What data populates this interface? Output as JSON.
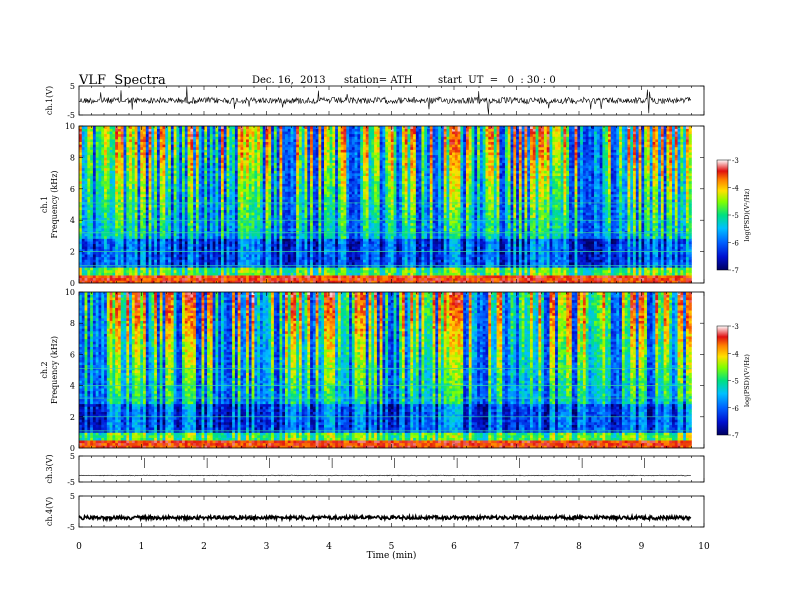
{
  "header": {
    "title": "VLF  Spectra",
    "date": "Dec. 16,  2013",
    "station": "station= ATH",
    "start": "start  UT  =   0  : 30 : 0"
  },
  "chart_data": [
    {
      "type": "line",
      "name": "ch1-waveform",
      "ylabel": "ch.1(V)",
      "ylim": [
        -5,
        5
      ],
      "yticks": [
        "5",
        "-5"
      ],
      "xlim": [
        0,
        10
      ],
      "data_end_min": 9.8,
      "baseline": 0,
      "color": "#000000"
    },
    {
      "type": "heatmap",
      "name": "ch1-spectrogram",
      "ylabel_top": "ch.1",
      "ylabel": "Frequency  (kHz)",
      "ylim": [
        0,
        10
      ],
      "yticks": [
        "0",
        "2",
        "4",
        "6",
        "8",
        "10"
      ],
      "xlim": [
        0,
        10
      ],
      "data_end_min": 9.8,
      "colorbar": {
        "label": "log(PSD)(V²/Hz)",
        "range": [
          -7,
          -3
        ],
        "ticks": [
          "-3",
          "-4",
          "-5",
          "-6",
          "-7"
        ]
      }
    },
    {
      "type": "heatmap",
      "name": "ch2-spectrogram",
      "ylabel_top": "ch.2",
      "ylabel": "Frequency  (kHz)",
      "ylim": [
        0,
        10
      ],
      "yticks": [
        "0",
        "2",
        "4",
        "6",
        "8",
        "10"
      ],
      "xlim": [
        0,
        10
      ],
      "data_end_min": 9.8,
      "colorbar": {
        "label": "log(PSD)(V²/Hz)",
        "range": [
          -7,
          -3
        ],
        "ticks": [
          "-3",
          "-4",
          "-5",
          "-6",
          "-7"
        ]
      }
    },
    {
      "type": "line",
      "name": "ch3-waveform",
      "ylabel": "ch.3(V)",
      "ylim": [
        -5,
        5
      ],
      "yticks": [
        "5",
        "-5"
      ],
      "xlim": [
        0,
        10
      ],
      "data_end_min": 9.8,
      "baseline": -2.5,
      "color": "#000000"
    },
    {
      "type": "line",
      "name": "ch4-waveform",
      "ylabel": "ch.4(V)",
      "ylim": [
        -5,
        5
      ],
      "yticks": [
        "5",
        "-5"
      ],
      "xlim": [
        0,
        10
      ],
      "data_end_min": 9.8,
      "baseline": -2.0,
      "color": "#000000"
    }
  ],
  "x_axis": {
    "label": "Time  (min)",
    "ticks": [
      "0",
      "1",
      "2",
      "3",
      "4",
      "5",
      "6",
      "7",
      "8",
      "9",
      "10"
    ]
  }
}
